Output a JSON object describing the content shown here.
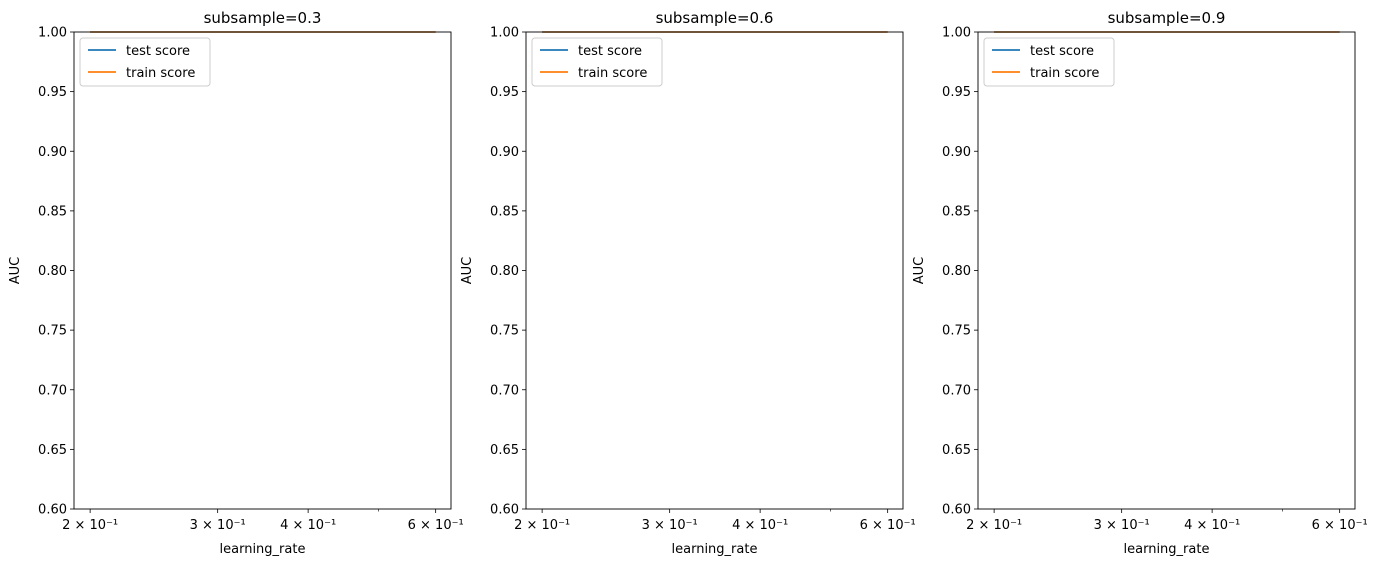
{
  "figure": {
    "background": "#ffffff"
  },
  "chart_data": [
    {
      "type": "line",
      "title": "subsample=0.3",
      "xlabel": "learning_rate",
      "ylabel": "AUC",
      "xscale": "log",
      "xlim": [
        0.19,
        0.63
      ],
      "ylim": [
        0.6,
        1.0
      ],
      "x_tick_labels": [
        {
          "value": 0.2,
          "label": "2 × 10⁻¹"
        },
        {
          "value": 0.3,
          "label": "3 × 10⁻¹"
        },
        {
          "value": 0.4,
          "label": "4 × 10⁻¹"
        },
        {
          "value": 0.6,
          "label": "6 × 10⁻¹"
        }
      ],
      "y_ticks": [
        "0.60",
        "0.65",
        "0.70",
        "0.75",
        "0.80",
        "0.85",
        "0.90",
        "0.95",
        "1.00"
      ],
      "grid": false,
      "legend_position": "upper-left",
      "series": [
        {
          "name": "test score",
          "color": "#1f77b4",
          "x": [
            0.2,
            0.6
          ],
          "y": [
            1.0,
            1.0
          ]
        },
        {
          "name": "train score",
          "color": "#ff7f0e",
          "x": [
            0.2,
            0.6
          ],
          "y": [
            1.0,
            1.0
          ]
        }
      ]
    },
    {
      "type": "line",
      "title": "subsample=0.6",
      "xlabel": "learning_rate",
      "ylabel": "AUC",
      "xscale": "log",
      "xlim": [
        0.19,
        0.63
      ],
      "ylim": [
        0.6,
        1.0
      ],
      "x_tick_labels": [
        {
          "value": 0.2,
          "label": "2 × 10⁻¹"
        },
        {
          "value": 0.3,
          "label": "3 × 10⁻¹"
        },
        {
          "value": 0.4,
          "label": "4 × 10⁻¹"
        },
        {
          "value": 0.6,
          "label": "6 × 10⁻¹"
        }
      ],
      "y_ticks": [
        "0.60",
        "0.65",
        "0.70",
        "0.75",
        "0.80",
        "0.85",
        "0.90",
        "0.95",
        "1.00"
      ],
      "grid": false,
      "legend_position": "upper-left",
      "series": [
        {
          "name": "test score",
          "color": "#1f77b4",
          "x": [
            0.2,
            0.6
          ],
          "y": [
            1.0,
            1.0
          ]
        },
        {
          "name": "train score",
          "color": "#ff7f0e",
          "x": [
            0.2,
            0.6
          ],
          "y": [
            1.0,
            1.0
          ]
        }
      ]
    },
    {
      "type": "line",
      "title": "subsample=0.9",
      "xlabel": "learning_rate",
      "ylabel": "AUC",
      "xscale": "log",
      "xlim": [
        0.19,
        0.63
      ],
      "ylim": [
        0.6,
        1.0
      ],
      "x_tick_labels": [
        {
          "value": 0.2,
          "label": "2 × 10⁻¹"
        },
        {
          "value": 0.3,
          "label": "3 × 10⁻¹"
        },
        {
          "value": 0.4,
          "label": "4 × 10⁻¹"
        },
        {
          "value": 0.6,
          "label": "6 × 10⁻¹"
        }
      ],
      "y_ticks": [
        "0.60",
        "0.65",
        "0.70",
        "0.75",
        "0.80",
        "0.85",
        "0.90",
        "0.95",
        "1.00"
      ],
      "grid": false,
      "legend_position": "upper-left",
      "series": [
        {
          "name": "test score",
          "color": "#1f77b4",
          "x": [
            0.2,
            0.6
          ],
          "y": [
            1.0,
            1.0
          ]
        },
        {
          "name": "train score",
          "color": "#ff7f0e",
          "x": [
            0.2,
            0.6
          ],
          "y": [
            1.0,
            1.0
          ]
        }
      ]
    }
  ]
}
